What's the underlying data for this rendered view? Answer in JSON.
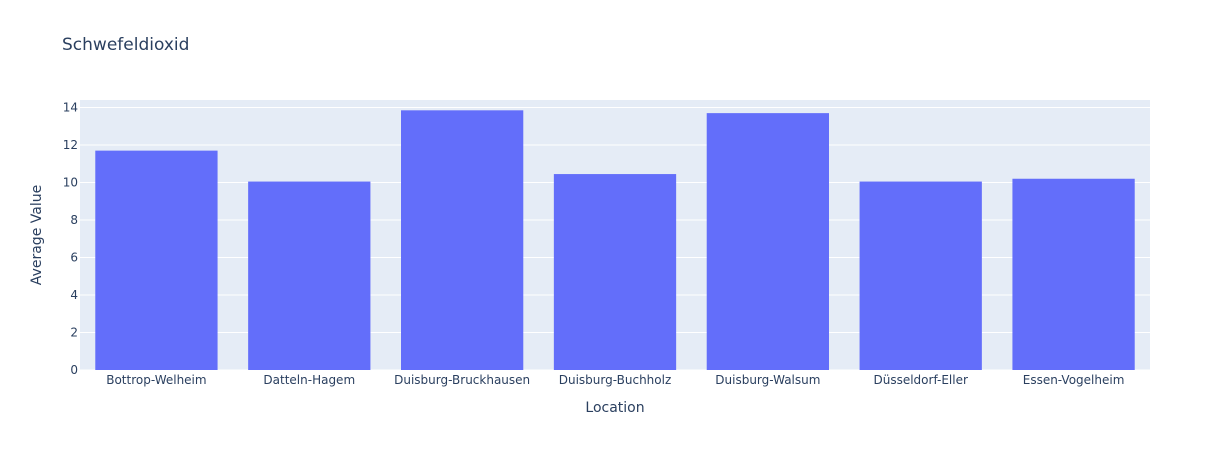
{
  "chart_data": {
    "type": "bar",
    "title": "Schwefeldioxid",
    "xlabel": "Location",
    "ylabel": "Average Value",
    "categories": [
      "Bottrop-Welheim",
      "Datteln-Hagem",
      "Duisburg-Bruckhausen",
      "Duisburg-Buchholz",
      "Duisburg-Walsum",
      "Düsseldorf-Eller",
      "Essen-Vogelheim"
    ],
    "values": [
      11.7,
      10.05,
      13.85,
      10.45,
      13.7,
      10.05,
      10.2
    ],
    "ylim": [
      0,
      14.4
    ],
    "yticks": [
      0,
      2,
      4,
      6,
      8,
      10,
      12,
      14
    ],
    "grid": true,
    "colors": {
      "bar": "#636efa",
      "plot_bg": "#e5ecf6",
      "grid": "#ffffff",
      "text": "#2a3f5f"
    }
  }
}
